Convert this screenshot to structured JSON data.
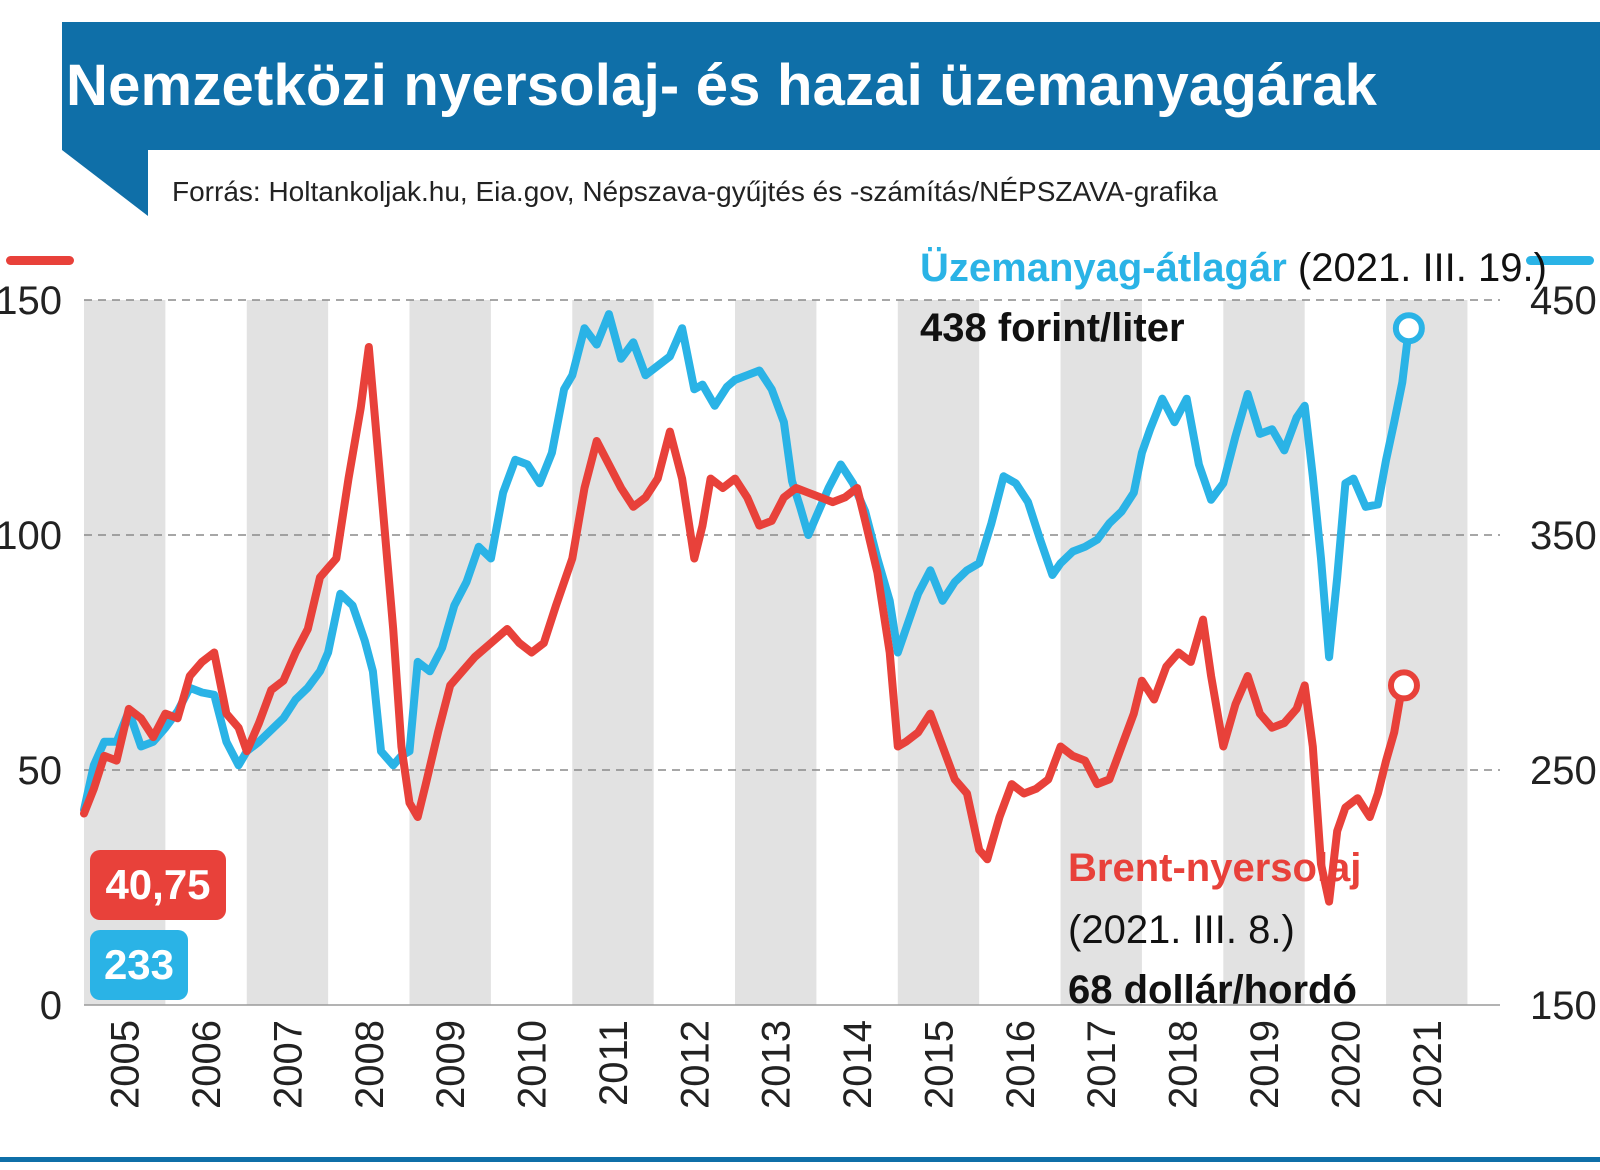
{
  "title": "Nemzetközi nyersolaj- és hazai üzemanyagárak",
  "source": "Forrás: Holtankoljak.hu, Eia.gov, Népszava-gyűjtés és -számítás/NÉPSZAVA-grafika",
  "annotations": {
    "fuel_name": "Üzemanyag-átlagár",
    "fuel_date": " (2021. III. 19.)",
    "fuel_value": "438 forint/liter",
    "brent_name": "Brent-nyersolaj",
    "brent_date": "(2021. III. 8.)",
    "brent_value": "68 dollár/hordó",
    "brent_start_badge": "40,75",
    "fuel_start_badge": "233"
  },
  "colors": {
    "brand": "#0f6fa8",
    "brent": "#e8413a",
    "fuel": "#2ab3e6",
    "band": "#e2e2e2"
  },
  "chart_data": {
    "type": "line",
    "title": "Nemzetközi nyersolaj- és hazai üzemanyagárak",
    "x_axis": {
      "type": "year",
      "range": [
        2005,
        2021.4
      ],
      "ticks": [
        2005,
        2006,
        2007,
        2008,
        2009,
        2010,
        2011,
        2012,
        2013,
        2014,
        2015,
        2016,
        2017,
        2018,
        2019,
        2020,
        2021
      ],
      "tick_labels": [
        "2005",
        "2006",
        "2007",
        "2008",
        "2009",
        "2010",
        "2011",
        "2012",
        "2013",
        "2014",
        "2015",
        "2016",
        "2017",
        "2018",
        "2019",
        "2020",
        "2021"
      ],
      "alternating_bands": true
    },
    "y_left": {
      "range": [
        0,
        150
      ],
      "ticks": [
        0,
        50,
        100,
        150
      ],
      "series": "Brent-nyersolaj"
    },
    "y_right": {
      "range": [
        150,
        450
      ],
      "ticks": [
        150,
        250,
        350,
        450
      ],
      "series": "Üzemanyag-átlagár"
    },
    "grid": "dashed horizontal at ticks",
    "series": [
      {
        "name": "Brent-nyersolaj",
        "axis": "left",
        "color": "#e8413a",
        "end_marker": true,
        "points": [
          [
            2005.0,
            40.75
          ],
          [
            2005.12,
            46
          ],
          [
            2005.25,
            53
          ],
          [
            2005.4,
            52
          ],
          [
            2005.55,
            63
          ],
          [
            2005.7,
            61
          ],
          [
            2005.85,
            57
          ],
          [
            2006.0,
            62
          ],
          [
            2006.15,
            61
          ],
          [
            2006.3,
            70
          ],
          [
            2006.45,
            73
          ],
          [
            2006.6,
            75
          ],
          [
            2006.75,
            62
          ],
          [
            2006.9,
            59
          ],
          [
            2007.0,
            54
          ],
          [
            2007.15,
            60
          ],
          [
            2007.3,
            67
          ],
          [
            2007.45,
            69
          ],
          [
            2007.6,
            75
          ],
          [
            2007.75,
            80
          ],
          [
            2007.9,
            91
          ],
          [
            2008.0,
            93
          ],
          [
            2008.1,
            95
          ],
          [
            2008.25,
            112
          ],
          [
            2008.4,
            127
          ],
          [
            2008.5,
            140
          ],
          [
            2008.6,
            120
          ],
          [
            2008.7,
            100
          ],
          [
            2008.8,
            80
          ],
          [
            2008.9,
            55
          ],
          [
            2009.0,
            43
          ],
          [
            2009.1,
            40
          ],
          [
            2009.2,
            47
          ],
          [
            2009.35,
            58
          ],
          [
            2009.5,
            68
          ],
          [
            2009.65,
            71
          ],
          [
            2009.8,
            74
          ],
          [
            2010.0,
            77
          ],
          [
            2010.2,
            80
          ],
          [
            2010.35,
            77
          ],
          [
            2010.5,
            75
          ],
          [
            2010.65,
            77
          ],
          [
            2010.8,
            85
          ],
          [
            2011.0,
            95
          ],
          [
            2011.15,
            110
          ],
          [
            2011.3,
            120
          ],
          [
            2011.45,
            115
          ],
          [
            2011.6,
            110
          ],
          [
            2011.75,
            106
          ],
          [
            2011.9,
            108
          ],
          [
            2012.05,
            112
          ],
          [
            2012.2,
            122
          ],
          [
            2012.35,
            112
          ],
          [
            2012.5,
            95
          ],
          [
            2012.6,
            102
          ],
          [
            2012.7,
            112
          ],
          [
            2012.85,
            110
          ],
          [
            2013.0,
            112
          ],
          [
            2013.15,
            108
          ],
          [
            2013.3,
            102
          ],
          [
            2013.45,
            103
          ],
          [
            2013.6,
            108
          ],
          [
            2013.75,
            110
          ],
          [
            2013.9,
            109
          ],
          [
            2014.05,
            108
          ],
          [
            2014.2,
            107
          ],
          [
            2014.35,
            108
          ],
          [
            2014.5,
            110
          ],
          [
            2014.6,
            103
          ],
          [
            2014.75,
            92
          ],
          [
            2014.9,
            75
          ],
          [
            2015.0,
            55
          ],
          [
            2015.1,
            56
          ],
          [
            2015.25,
            58
          ],
          [
            2015.4,
            62
          ],
          [
            2015.55,
            55
          ],
          [
            2015.7,
            48
          ],
          [
            2015.85,
            45
          ],
          [
            2016.0,
            33
          ],
          [
            2016.1,
            31
          ],
          [
            2016.25,
            40
          ],
          [
            2016.4,
            47
          ],
          [
            2016.55,
            45
          ],
          [
            2016.7,
            46
          ],
          [
            2016.85,
            48
          ],
          [
            2017.0,
            55
          ],
          [
            2017.15,
            53
          ],
          [
            2017.3,
            52
          ],
          [
            2017.45,
            47
          ],
          [
            2017.6,
            48
          ],
          [
            2017.75,
            55
          ],
          [
            2017.9,
            62
          ],
          [
            2018.0,
            69
          ],
          [
            2018.15,
            65
          ],
          [
            2018.3,
            72
          ],
          [
            2018.45,
            75
          ],
          [
            2018.6,
            73
          ],
          [
            2018.75,
            82
          ],
          [
            2018.85,
            70
          ],
          [
            2019.0,
            55
          ],
          [
            2019.15,
            64
          ],
          [
            2019.3,
            70
          ],
          [
            2019.45,
            62
          ],
          [
            2019.6,
            59
          ],
          [
            2019.75,
            60
          ],
          [
            2019.9,
            63
          ],
          [
            2020.0,
            68
          ],
          [
            2020.1,
            55
          ],
          [
            2020.2,
            30
          ],
          [
            2020.3,
            22
          ],
          [
            2020.4,
            37
          ],
          [
            2020.5,
            42
          ],
          [
            2020.65,
            44
          ],
          [
            2020.8,
            40
          ],
          [
            2020.9,
            45
          ],
          [
            2021.0,
            52
          ],
          [
            2021.1,
            58
          ],
          [
            2021.18,
            66
          ],
          [
            2021.22,
            68
          ]
        ]
      },
      {
        "name": "Üzemanyag-átlagár",
        "axis": "right",
        "color": "#2ab3e6",
        "end_marker": true,
        "points": [
          [
            2005.0,
            233
          ],
          [
            2005.12,
            252
          ],
          [
            2005.25,
            262
          ],
          [
            2005.4,
            262
          ],
          [
            2005.55,
            275
          ],
          [
            2005.7,
            260
          ],
          [
            2005.85,
            262
          ],
          [
            2006.0,
            268
          ],
          [
            2006.15,
            275
          ],
          [
            2006.3,
            285
          ],
          [
            2006.45,
            283
          ],
          [
            2006.6,
            282
          ],
          [
            2006.75,
            262
          ],
          [
            2006.9,
            252
          ],
          [
            2007.0,
            258
          ],
          [
            2007.15,
            262
          ],
          [
            2007.3,
            267
          ],
          [
            2007.45,
            272
          ],
          [
            2007.6,
            280
          ],
          [
            2007.75,
            285
          ],
          [
            2007.9,
            292
          ],
          [
            2008.0,
            300
          ],
          [
            2008.15,
            325
          ],
          [
            2008.3,
            320
          ],
          [
            2008.45,
            305
          ],
          [
            2008.55,
            292
          ],
          [
            2008.65,
            258
          ],
          [
            2008.8,
            252
          ],
          [
            2008.9,
            256
          ],
          [
            2009.0,
            258
          ],
          [
            2009.1,
            296
          ],
          [
            2009.25,
            292
          ],
          [
            2009.4,
            302
          ],
          [
            2009.55,
            320
          ],
          [
            2009.7,
            330
          ],
          [
            2009.85,
            345
          ],
          [
            2010.0,
            340
          ],
          [
            2010.15,
            368
          ],
          [
            2010.3,
            382
          ],
          [
            2010.45,
            380
          ],
          [
            2010.6,
            372
          ],
          [
            2010.75,
            385
          ],
          [
            2010.9,
            412
          ],
          [
            2011.0,
            418
          ],
          [
            2011.15,
            438
          ],
          [
            2011.3,
            431
          ],
          [
            2011.45,
            444
          ],
          [
            2011.6,
            425
          ],
          [
            2011.75,
            432
          ],
          [
            2011.9,
            418
          ],
          [
            2012.05,
            422
          ],
          [
            2012.2,
            426
          ],
          [
            2012.35,
            438
          ],
          [
            2012.5,
            412
          ],
          [
            2012.6,
            414
          ],
          [
            2012.75,
            405
          ],
          [
            2012.9,
            413
          ],
          [
            2013.0,
            416
          ],
          [
            2013.15,
            418
          ],
          [
            2013.3,
            420
          ],
          [
            2013.45,
            412
          ],
          [
            2013.6,
            398
          ],
          [
            2013.7,
            373
          ],
          [
            2013.8,
            362
          ],
          [
            2013.9,
            350
          ],
          [
            2014.0,
            358
          ],
          [
            2014.15,
            370
          ],
          [
            2014.3,
            380
          ],
          [
            2014.45,
            372
          ],
          [
            2014.6,
            360
          ],
          [
            2014.75,
            340
          ],
          [
            2014.9,
            322
          ],
          [
            2015.0,
            300
          ],
          [
            2015.1,
            310
          ],
          [
            2015.25,
            325
          ],
          [
            2015.4,
            335
          ],
          [
            2015.55,
            322
          ],
          [
            2015.7,
            330
          ],
          [
            2015.85,
            335
          ],
          [
            2016.0,
            338
          ],
          [
            2016.15,
            355
          ],
          [
            2016.3,
            375
          ],
          [
            2016.45,
            372
          ],
          [
            2016.6,
            364
          ],
          [
            2016.75,
            348
          ],
          [
            2016.9,
            333
          ],
          [
            2017.0,
            338
          ],
          [
            2017.15,
            343
          ],
          [
            2017.3,
            345
          ],
          [
            2017.45,
            348
          ],
          [
            2017.6,
            355
          ],
          [
            2017.75,
            360
          ],
          [
            2017.9,
            368
          ],
          [
            2018.0,
            385
          ],
          [
            2018.1,
            395
          ],
          [
            2018.25,
            408
          ],
          [
            2018.4,
            398
          ],
          [
            2018.55,
            408
          ],
          [
            2018.7,
            380
          ],
          [
            2018.85,
            365
          ],
          [
            2019.0,
            372
          ],
          [
            2019.15,
            392
          ],
          [
            2019.3,
            410
          ],
          [
            2019.45,
            393
          ],
          [
            2019.6,
            395
          ],
          [
            2019.75,
            386
          ],
          [
            2019.9,
            400
          ],
          [
            2020.0,
            405
          ],
          [
            2020.1,
            375
          ],
          [
            2020.2,
            340
          ],
          [
            2020.3,
            298
          ],
          [
            2020.4,
            332
          ],
          [
            2020.5,
            372
          ],
          [
            2020.6,
            374
          ],
          [
            2020.75,
            362
          ],
          [
            2020.9,
            363
          ],
          [
            2021.0,
            382
          ],
          [
            2021.1,
            398
          ],
          [
            2021.2,
            415
          ],
          [
            2021.28,
            438
          ]
        ]
      }
    ]
  }
}
